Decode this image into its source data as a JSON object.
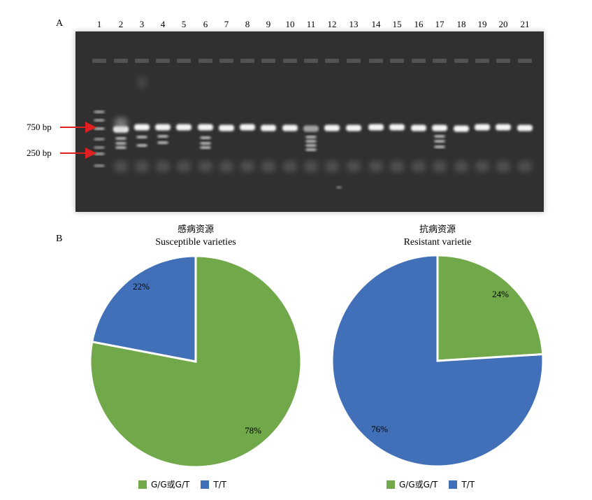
{
  "panel_a": {
    "label": "A",
    "lane_numbers": [
      "1",
      "2",
      "3",
      "4",
      "5",
      "6",
      "7",
      "8",
      "9",
      "10",
      "11",
      "12",
      "13",
      "14",
      "15",
      "16",
      "17",
      "18",
      "19",
      "20",
      "21"
    ],
    "markers": [
      {
        "label": "750 bp",
        "color": "#e02020"
      },
      {
        "label": "250 bp",
        "color": "#e02020"
      }
    ]
  },
  "panel_b": {
    "label": "B",
    "legend": [
      {
        "label": "G/G或G/T",
        "color": "#70a84a"
      },
      {
        "label": "T/T",
        "color": "#4270b8"
      }
    ]
  },
  "chart_data": [
    {
      "type": "pie",
      "title": "感病资源",
      "subtitle": "Susceptible varieties",
      "slices": [
        {
          "label": "G/G或G/T",
          "value": 78,
          "display": "78%",
          "color": "#70a84a"
        },
        {
          "label": "T/T",
          "value": 22,
          "display": "22%",
          "color": "#4270b8"
        }
      ]
    },
    {
      "type": "pie",
      "title": "抗病资源",
      "subtitle": "Resistant varietie",
      "slices": [
        {
          "label": "G/G或G/T",
          "value": 24,
          "display": "24%",
          "color": "#70a84a"
        },
        {
          "label": "T/T",
          "value": 76,
          "display": "76%",
          "color": "#4270b8"
        }
      ]
    }
  ]
}
